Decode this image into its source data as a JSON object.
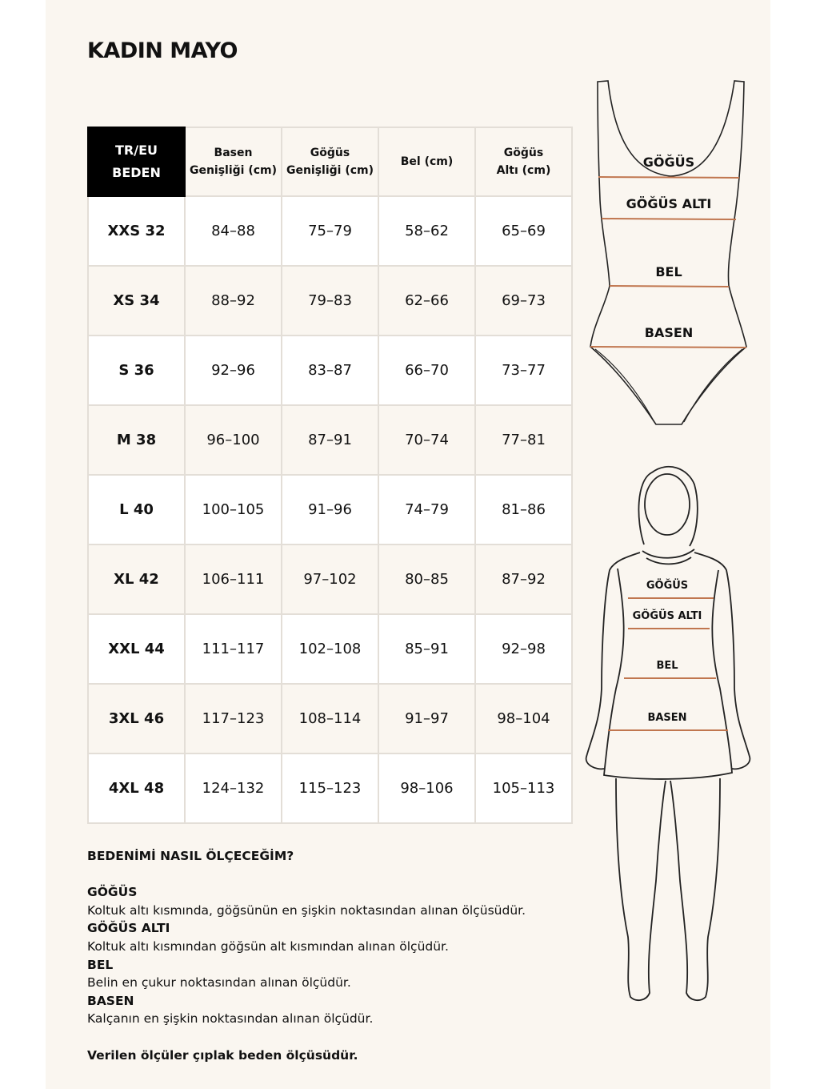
{
  "title": "KADIN MAYO",
  "table": {
    "headers": [
      "TR/EU BEDEN",
      "Basen Genişliği (cm)",
      "Göğüs Genişliği (cm)",
      "Bel  (cm)",
      "Göğüs Altı (cm)"
    ],
    "header_lines": [
      [
        "TR/EU",
        "BEDEN"
      ],
      [
        "Basen",
        "Genişliği (cm)"
      ],
      [
        "Göğüs",
        "Genişliği (cm)"
      ],
      [
        "Bel  (cm)"
      ],
      [
        "Göğüs",
        "Altı (cm)"
      ]
    ],
    "rows": [
      [
        "XXS 32",
        "84–88",
        "75–79",
        "58–62",
        "65–69"
      ],
      [
        "XS 34",
        "88–92",
        "79–83",
        "62–66",
        "69–73"
      ],
      [
        "S 36",
        "92–96",
        "83–87",
        "66–70",
        "73–77"
      ],
      [
        "M 38",
        "96–100",
        "87–91",
        "70–74",
        "77–81"
      ],
      [
        "L 40",
        "100–105",
        "91–96",
        "74–79",
        "81–86"
      ],
      [
        "XL 42",
        "106–111",
        "97–102",
        "80–85",
        "87–92"
      ],
      [
        "XXL 44",
        "111–117",
        "102–108",
        "85–91",
        "92–98"
      ],
      [
        "3XL 46",
        "117–123",
        "108–114",
        "91–97",
        "98–104"
      ],
      [
        "4XL 48",
        "124–132",
        "115–123",
        "98–106",
        "105–113"
      ]
    ]
  },
  "guide": {
    "heading": "BEDENİMİ NASIL ÖLÇECEĞİM?",
    "items": [
      {
        "label": "GÖĞÜS",
        "text": "Koltuk altı kısmında, göğsünün en şişkin noktasından alınan ölçüsüdür."
      },
      {
        "label": "GÖĞÜS ALTI",
        "text": "Koltuk altı kısmından göğsün alt kısmından alınan ölçüdür."
      },
      {
        "label": "BEL",
        "text": "Belin en çukur noktasından alınan ölçüdür."
      },
      {
        "label": "BASEN",
        "text": "Kalçanın en şişkin noktasından alınan ölçüdür."
      }
    ],
    "note": "Verilen ölçüler çıplak beden ölçüsüdür."
  },
  "figures": {
    "labels": [
      "GÖĞÜS",
      "GÖĞÜS ALTI",
      "BEL",
      "BASEN"
    ],
    "measure_line_color": "#c0764f"
  }
}
